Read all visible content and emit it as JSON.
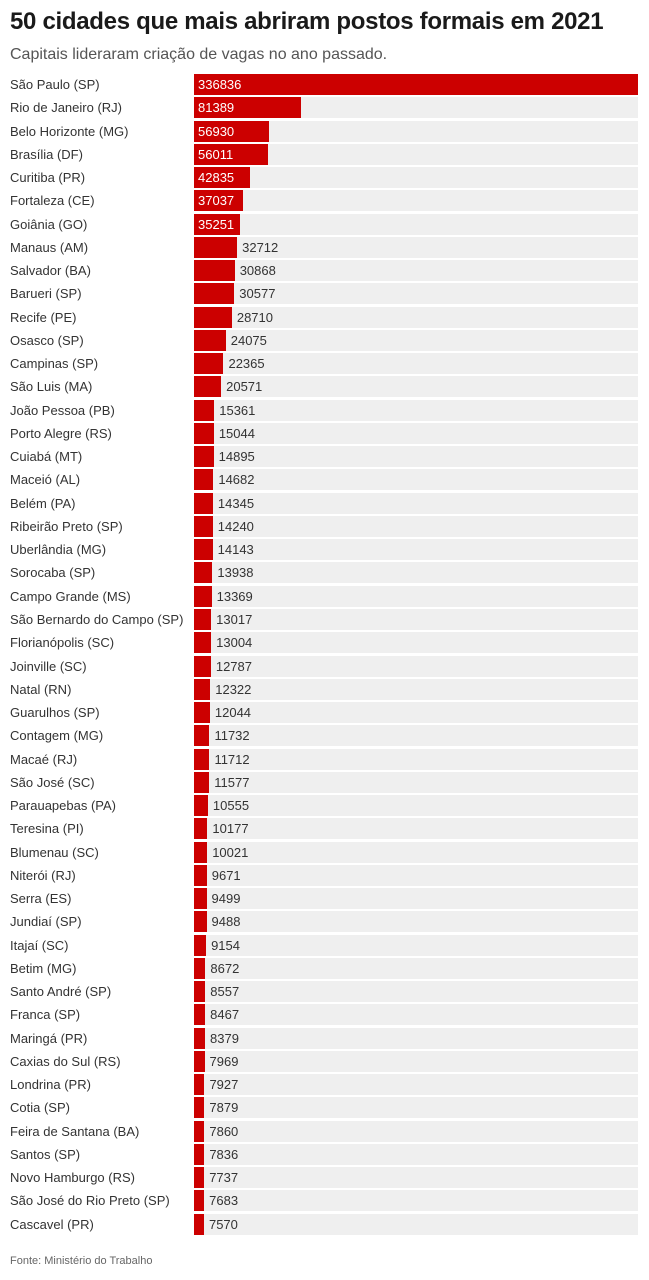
{
  "header": {
    "title": "50 cidades que mais abriram postos formais em 2021",
    "subtitle": "Capitais lideraram criação de vagas no ano passado."
  },
  "footer": {
    "source": "Fonte: Ministério do Trabalho"
  },
  "colors": {
    "bar": "#cc0000",
    "track": "#efefef"
  },
  "chart_data": {
    "type": "bar",
    "orientation": "horizontal",
    "title": "50 cidades que mais abriram postos formais em 2021",
    "subtitle": "Capitais lideraram criação de vagas no ano passado.",
    "xlabel": "",
    "ylabel": "",
    "xlim": [
      0,
      336836
    ],
    "grid": false,
    "categories": [
      "São Paulo (SP)",
      "Rio de Janeiro (RJ)",
      "Belo Horizonte (MG)",
      "Brasília (DF)",
      "Curitiba (PR)",
      "Fortaleza (CE)",
      "Goiânia (GO)",
      "Manaus (AM)",
      "Salvador (BA)",
      "Barueri (SP)",
      "Recife (PE)",
      "Osasco (SP)",
      "Campinas (SP)",
      "São Luis (MA)",
      "João Pessoa (PB)",
      "Porto Alegre (RS)",
      "Cuiabá (MT)",
      "Maceió (AL)",
      "Belém (PA)",
      "Ribeirão Preto (SP)",
      "Uberlândia (MG)",
      "Sorocaba (SP)",
      "Campo Grande (MS)",
      "São Bernardo do Campo (SP)",
      "Florianópolis (SC)",
      "Joinville (SC)",
      "Natal (RN)",
      "Guarulhos (SP)",
      "Contagem (MG)",
      "Macaé (RJ)",
      "São José (SC)",
      "Parauapebas (PA)",
      "Teresina (PI)",
      "Blumenau (SC)",
      "Niterói (RJ)",
      "Serra (ES)",
      "Jundiaí (SP)",
      "Itajaí (SC)",
      "Betim (MG)",
      "Santo André (SP)",
      "Franca (SP)",
      "Maringá (PR)",
      "Caxias do Sul (RS)",
      "Londrina (PR)",
      "Cotia (SP)",
      "Feira de Santana (BA)",
      "Santos (SP)",
      "Novo Hamburgo (RS)",
      "São José do Rio Preto (SP)",
      "Cascavel (PR)"
    ],
    "values": [
      336836,
      81389,
      56930,
      56011,
      42835,
      37037,
      35251,
      32712,
      30868,
      30577,
      28710,
      24075,
      22365,
      20571,
      15361,
      15044,
      14895,
      14682,
      14345,
      14240,
      14143,
      13938,
      13369,
      13017,
      13004,
      12787,
      12322,
      12044,
      11732,
      11712,
      11577,
      10555,
      10177,
      10021,
      9671,
      9499,
      9488,
      9154,
      8672,
      8557,
      8467,
      8379,
      7969,
      7927,
      7879,
      7860,
      7836,
      7737,
      7683,
      7570
    ]
  }
}
